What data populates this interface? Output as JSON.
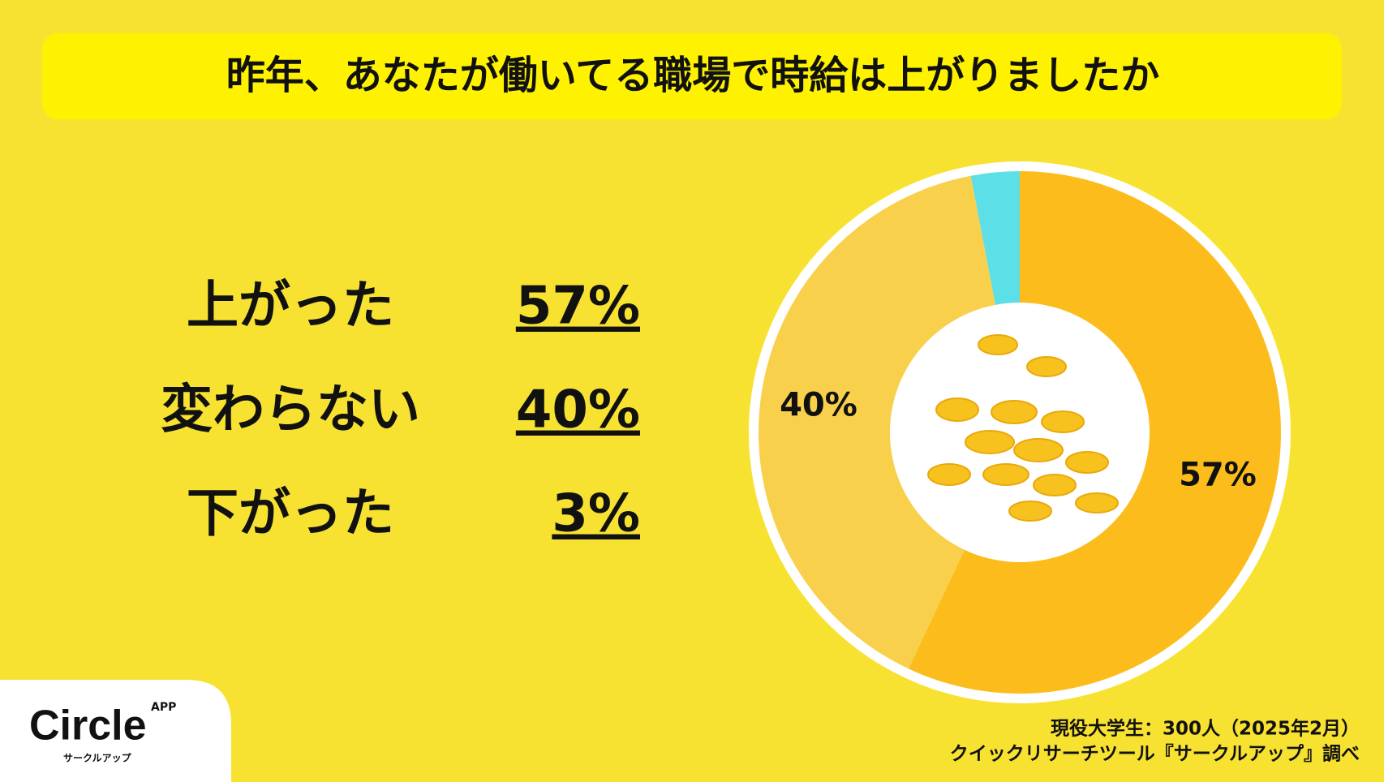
{
  "chart_data": {
    "type": "donut",
    "title": "昨年、あなたが働いてる職場で時給は上がりましたか",
    "categories": [
      "上がった",
      "変わらない",
      "下がった"
    ],
    "values": [
      57,
      40,
      3
    ],
    "value_labels": [
      "57%",
      "40%",
      "3%"
    ],
    "colors": [
      "#fbbc1c",
      "#f9d04b",
      "#5cdfe6"
    ],
    "notes": [
      "現役大学生：300人（2025年2月）",
      "クイックリサーチツール『サークルアップ』調べ"
    ]
  },
  "logo": {
    "name": "Circle",
    "badge": "APP",
    "kana": "サークルアップ"
  }
}
